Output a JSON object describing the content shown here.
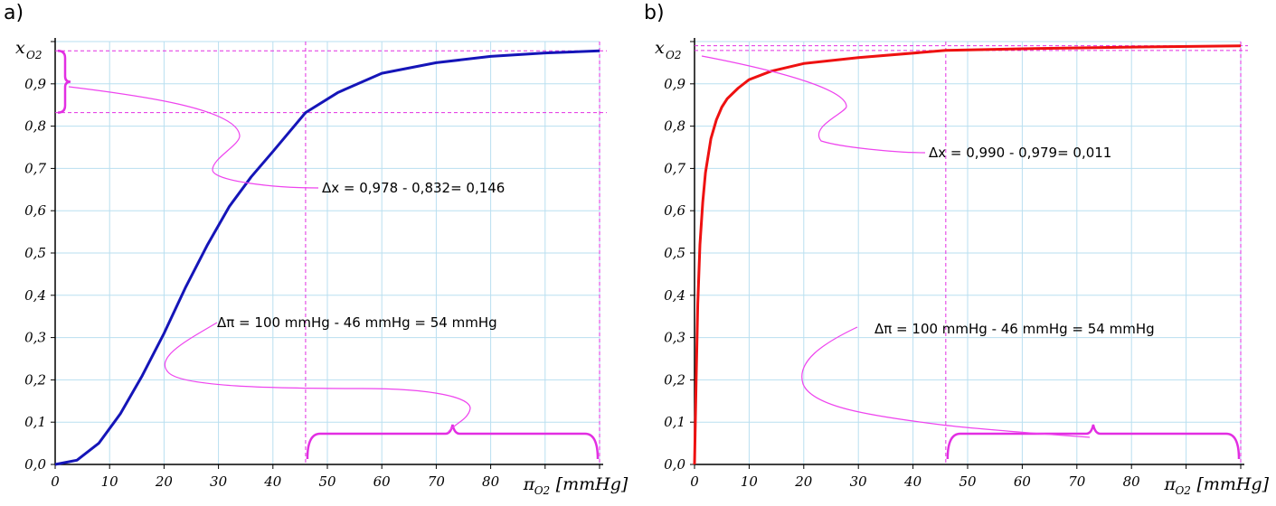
{
  "chart_data": [
    {
      "panel": "a)",
      "type": "line",
      "xlim": [
        0,
        100
      ],
      "ylim": [
        0,
        1.0
      ],
      "x_ticks": [
        "0",
        "10",
        "20",
        "30",
        "40",
        "50",
        "60",
        "70",
        "80"
      ],
      "y_ticks": [
        "0,0",
        "0,1",
        "0,2",
        "0,3",
        "0,4",
        "0,5",
        "0,6",
        "0,7",
        "0,8",
        "0,9"
      ],
      "ylabel": "x",
      "ylabel_sub": "O2",
      "xlabel": "π",
      "xlabel_sub": "O2",
      "xlabel_unit": "[mmHg]",
      "grid": true,
      "color": "#1515b8",
      "series": [
        {
          "x": [
            0,
            4,
            8,
            12,
            16,
            20,
            24,
            28,
            32,
            36,
            40,
            46,
            52,
            60,
            70,
            80,
            90,
            100
          ],
          "y": [
            0.0,
            0.01,
            0.05,
            0.12,
            0.21,
            0.31,
            0.42,
            0.52,
            0.61,
            0.68,
            0.74,
            0.832,
            0.88,
            0.925,
            0.95,
            0.965,
            0.973,
            0.978
          ]
        }
      ],
      "annotations": {
        "dx": "Δx = 0,978  - 0,832= 0,146",
        "dpi": "Δπ = 100 mmHg - 46 mmHg = 54 mmHg"
      },
      "marks": {
        "x1": 46,
        "x2": 100,
        "y1": 0.832,
        "y2": 0.978
      }
    },
    {
      "panel": "b)",
      "type": "line",
      "xlim": [
        0,
        100
      ],
      "ylim": [
        0,
        1.0
      ],
      "x_ticks": [
        "0",
        "10",
        "20",
        "30",
        "40",
        "50",
        "60",
        "70",
        "80"
      ],
      "y_ticks": [
        "0,0",
        "0,1",
        "0,2",
        "0,3",
        "0,4",
        "0,5",
        "0,6",
        "0,7",
        "0,8",
        "0,9"
      ],
      "ylabel": "x",
      "ylabel_sub": "O2",
      "xlabel": "π",
      "xlabel_sub": "O2",
      "xlabel_unit": "[mmHg]",
      "grid": true,
      "color": "#ee1111",
      "series": [
        {
          "x": [
            0,
            0.3,
            0.6,
            1,
            1.5,
            2,
            3,
            4,
            5,
            6,
            8,
            10,
            14,
            20,
            30,
            46,
            60,
            80,
            100
          ],
          "y": [
            0.0,
            0.2,
            0.38,
            0.52,
            0.62,
            0.69,
            0.77,
            0.815,
            0.845,
            0.865,
            0.89,
            0.91,
            0.93,
            0.948,
            0.962,
            0.979,
            0.983,
            0.987,
            0.99
          ]
        }
      ],
      "annotations": {
        "dx": "Δx = 0,990  - 0,979= 0,011",
        "dpi": "Δπ = 100 mmHg - 46 mmHg = 54 mmHg"
      },
      "marks": {
        "x1": 46,
        "x2": 100,
        "y1": 0.979,
        "y2": 0.99
      }
    }
  ]
}
